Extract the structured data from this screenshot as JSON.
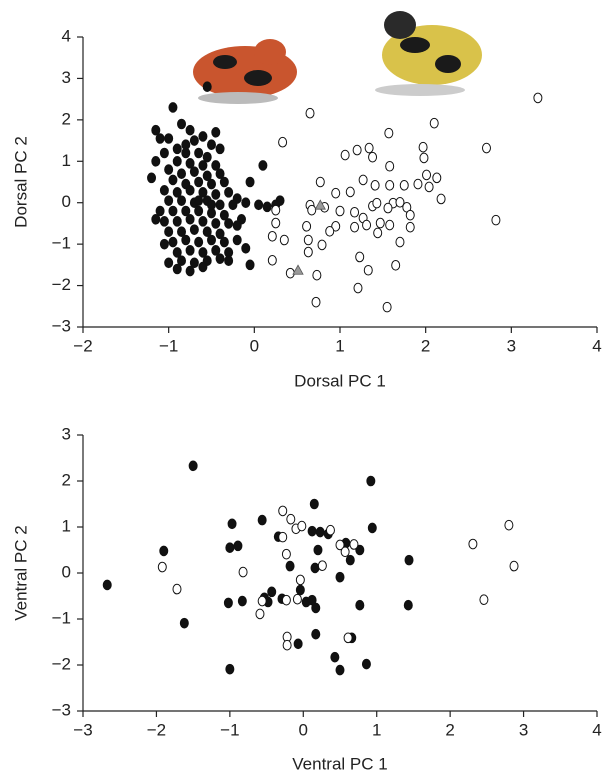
{
  "chart_data": [
    {
      "type": "scatter",
      "xlabel": "Dorsal PC 1",
      "ylabel": "Dorsal PC 2",
      "xlim": [
        -2,
        4
      ],
      "ylim": [
        -3,
        4
      ],
      "xticks": [
        {
          "value": -2,
          "label": "−2"
        },
        {
          "value": -1,
          "label": "−1"
        },
        0,
        1,
        2,
        3,
        4
      ],
      "yticks": [
        {
          "value": -3,
          "label": "−3"
        },
        {
          "value": -2,
          "label": "−2"
        },
        {
          "value": -1,
          "label": "−1"
        },
        0,
        1,
        2,
        3,
        4
      ],
      "series": [
        {
          "marker": "filled",
          "color": "#111111",
          "x": [
            -1.15,
            -1.1,
            -0.95,
            -0.85,
            -0.75,
            -0.6,
            -0.5,
            -0.45,
            -0.7,
            -0.9,
            -1.05,
            -0.8,
            -0.65,
            -0.55,
            -0.9,
            -0.75,
            -0.6,
            -0.45,
            -1.0,
            -0.85,
            -0.7,
            -0.55,
            -0.4,
            -0.95,
            -0.8,
            -0.65,
            -0.5,
            -0.35,
            -1.05,
            -0.9,
            -0.75,
            -0.6,
            -0.45,
            -0.3,
            -0.2,
            -1.0,
            -0.85,
            -0.7,
            -0.55,
            -0.4,
            -0.25,
            -0.1,
            0.05,
            0.15,
            -1.1,
            -0.95,
            -0.8,
            -0.65,
            -0.5,
            -0.35,
            -1.05,
            -0.9,
            -0.75,
            -0.6,
            -0.45,
            -0.3,
            -0.15,
            -1.0,
            -0.85,
            -0.7,
            -0.55,
            -0.4,
            -0.95,
            -0.8,
            -0.65,
            -0.5,
            -0.35,
            -0.2,
            -0.9,
            -0.75,
            -0.6,
            -0.45,
            -0.3,
            -1.0,
            -0.85,
            -0.7,
            -0.55,
            -0.4,
            -0.75,
            -0.6,
            -0.9,
            -0.3,
            -0.05,
            0.3,
            0.25,
            0.1,
            -0.05,
            -1.15,
            -1.2,
            -1.15,
            -0.55,
            -0.8,
            -0.65,
            -0.5,
            -0.2,
            -0.1,
            -1.05,
            -1.0,
            -0.4
          ],
          "values": [
            1.75,
            1.55,
            2.3,
            1.9,
            1.75,
            1.6,
            1.4,
            1.7,
            1.5,
            1.3,
            1.2,
            1.2,
            1.2,
            1.1,
            1.0,
            0.95,
            0.9,
            0.9,
            0.8,
            0.7,
            0.75,
            0.65,
            0.7,
            0.55,
            0.45,
            0.5,
            0.45,
            0.5,
            0.3,
            0.25,
            0.3,
            0.25,
            0.2,
            0.25,
            0.1,
            0.05,
            0.05,
            0.0,
            0.05,
            -0.05,
            -0.05,
            0.0,
            -0.05,
            -0.1,
            -0.2,
            -0.2,
            -0.2,
            -0.2,
            -0.25,
            -0.3,
            -0.45,
            -0.45,
            -0.4,
            -0.45,
            -0.5,
            -0.5,
            -0.4,
            -0.7,
            -0.7,
            -0.65,
            -0.7,
            -0.75,
            -0.95,
            -0.9,
            -0.95,
            -0.9,
            -0.95,
            -0.9,
            -1.2,
            -1.15,
            -1.2,
            -1.15,
            -1.2,
            -1.45,
            -1.4,
            -1.45,
            -1.4,
            -1.35,
            -1.65,
            -1.55,
            -1.6,
            -1.4,
            -1.5,
            0.05,
            -0.05,
            0.9,
            0.5,
            1.0,
            0.6,
            -0.4,
            2.8,
            1.4,
            0.05,
            -0.05,
            -0.55,
            -1.1,
            -1.0,
            1.55,
            1.3
          ]
        },
        {
          "marker": "open",
          "color": "#111111",
          "x": [
            0.65,
            0.33,
            3.31,
            2.1,
            2.71,
            1.57,
            1.2,
            1.06,
            1.34,
            1.38,
            1.58,
            1.97,
            1.98,
            0.77,
            1.27,
            1.41,
            1.58,
            1.75,
            1.91,
            2.01,
            2.13,
            2.04,
            2.18,
            1.12,
            0.95,
            0.65,
            0.82,
            0.67,
            1.0,
            1.38,
            1.43,
            1.62,
            1.7,
            1.78,
            1.56,
            1.17,
            1.27,
            1.82,
            1.31,
            1.47,
            1.58,
            1.82,
            1.17,
            0.95,
            0.88,
            0.61,
            1.44,
            1.7,
            2.82,
            0.63,
            0.79,
            1.23,
            1.65,
            1.33,
            0.73,
            0.42,
            1.21,
            0.72,
            1.55,
            0.21,
            0.21,
            0.25,
            0.25,
            0.35,
            0.63
          ],
          "values": [
            2.16,
            1.46,
            2.53,
            1.92,
            1.32,
            1.68,
            1.27,
            1.15,
            1.32,
            1.1,
            0.88,
            1.34,
            1.08,
            0.5,
            0.55,
            0.42,
            0.42,
            0.42,
            0.45,
            0.67,
            0.6,
            0.38,
            0.09,
            0.26,
            0.23,
            -0.06,
            -0.11,
            -0.18,
            -0.2,
            -0.08,
            -0.01,
            -0.01,
            0.01,
            -0.11,
            -0.13,
            -0.23,
            -0.37,
            -0.3,
            -0.54,
            -0.49,
            -0.54,
            -0.59,
            -0.59,
            -0.57,
            -0.69,
            -0.57,
            -0.73,
            -0.95,
            -0.42,
            -0.9,
            -1.02,
            -1.31,
            -1.51,
            -1.63,
            -1.75,
            -1.7,
            -2.06,
            -2.4,
            -2.52,
            -1.39,
            -0.81,
            -0.49,
            -0.18,
            -0.9,
            -1.19
          ]
        },
        {
          "marker": "triangle",
          "color": "#999999",
          "x": [
            0.51,
            0.77
          ],
          "values": [
            -1.63,
            -0.06
          ]
        }
      ]
    },
    {
      "type": "scatter",
      "xlabel": "Ventral PC 1",
      "ylabel": "Ventral PC 2",
      "xlim": [
        -3,
        4
      ],
      "ylim": [
        -3,
        3
      ],
      "xticks": [
        {
          "value": -3,
          "label": "−3"
        },
        {
          "value": -2,
          "label": "−2"
        },
        {
          "value": -1,
          "label": "−1"
        },
        0,
        1,
        2,
        3,
        4
      ],
      "yticks": [
        {
          "value": -3,
          "label": "−3"
        },
        {
          "value": -2,
          "label": "−2"
        },
        {
          "value": -1,
          "label": "−1"
        },
        0,
        1,
        2,
        3
      ],
      "series": [
        {
          "marker": "filled",
          "color": "#111111",
          "x": [
            -2.67,
            -1.9,
            -1.5,
            -1.62,
            -1.0,
            -0.89,
            -0.97,
            -1.0,
            -1.02,
            -0.83,
            -0.56,
            -0.34,
            -0.43,
            -0.48,
            -0.29,
            -0.18,
            -0.04,
            0.04,
            0.17,
            0.12,
            0.15,
            0.23,
            0.34,
            0.2,
            0.16,
            -0.07,
            0.17,
            0.5,
            0.58,
            0.64,
            0.77,
            0.94,
            0.92,
            0.77,
            0.66,
            0.43,
            0.5,
            0.86,
            1.43,
            1.44,
            0.12,
            -0.53
          ],
          "values": [
            -0.26,
            0.48,
            2.33,
            -1.09,
            0.55,
            0.59,
            1.07,
            -2.09,
            -0.65,
            -0.61,
            1.15,
            0.79,
            -0.41,
            -0.63,
            -0.56,
            0.15,
            -0.37,
            -0.63,
            -0.76,
            0.91,
            1.5,
            0.89,
            0.85,
            0.5,
            0.11,
            -1.54,
            -1.33,
            -0.09,
            0.65,
            0.28,
            0.5,
            0.98,
            2.0,
            -0.7,
            -1.41,
            -1.83,
            -2.11,
            -1.98,
            -0.7,
            0.28,
            -0.59,
            -0.54
          ]
        },
        {
          "marker": "open",
          "color": "#111111",
          "x": [
            -1.92,
            -1.72,
            -0.82,
            -0.56,
            -0.59,
            -0.28,
            -0.28,
            -0.23,
            -0.1,
            -0.02,
            -0.04,
            -0.23,
            -0.08,
            -0.22,
            -0.22,
            0.37,
            0.5,
            0.57,
            0.69,
            0.26,
            0.61,
            2.31,
            2.8,
            2.87,
            2.46,
            -0.17
          ],
          "values": [
            0.13,
            -0.35,
            0.02,
            -0.61,
            -0.89,
            1.35,
            0.78,
            0.41,
            0.96,
            1.02,
            -0.15,
            -0.59,
            -0.57,
            -1.39,
            -1.57,
            0.93,
            0.61,
            0.46,
            0.62,
            0.16,
            -1.41,
            0.63,
            1.04,
            0.15,
            -0.58,
            1.17
          ]
        }
      ]
    }
  ]
}
